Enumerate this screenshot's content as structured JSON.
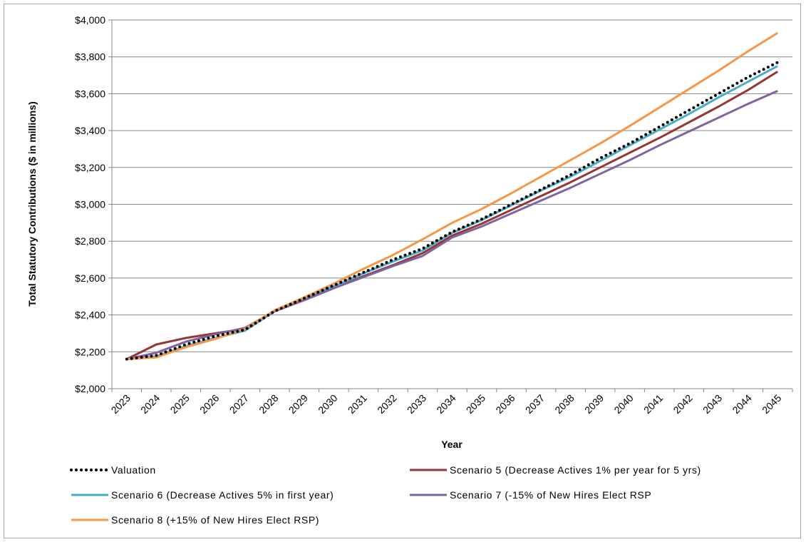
{
  "chart_data": {
    "type": "line",
    "title": "",
    "xlabel": "Year",
    "ylabel": "Total Statutory Contributions ($ in millions)",
    "x": [
      "2023",
      "2024",
      "2025",
      "2026",
      "2027",
      "2028",
      "2029",
      "2030",
      "2031",
      "2032",
      "2033",
      "2034",
      "2035",
      "2036",
      "2037",
      "2038",
      "2039",
      "2040",
      "2041",
      "2042",
      "2043",
      "2044",
      "2045"
    ],
    "ylim": [
      2000,
      4000
    ],
    "yticks": [
      {
        "value": 2000,
        "label": "$2,000"
      },
      {
        "value": 2200,
        "label": "$2,200"
      },
      {
        "value": 2400,
        "label": "$2,400"
      },
      {
        "value": 2600,
        "label": "$2,600"
      },
      {
        "value": 2800,
        "label": "$2,800"
      },
      {
        "value": 3000,
        "label": "$3,000"
      },
      {
        "value": 3200,
        "label": "$3,200"
      },
      {
        "value": 3400,
        "label": "$3,400"
      },
      {
        "value": 3600,
        "label": "$3,600"
      },
      {
        "value": 3800,
        "label": "$3,800"
      },
      {
        "value": 4000,
        "label": "$4,000"
      }
    ],
    "grid": "horizontal",
    "legend_position": "bottom",
    "series": [
      {
        "name": "Valuation",
        "color": "#000000",
        "style": "dotted",
        "values": [
          2160,
          2180,
          2240,
          2285,
          2320,
          2420,
          2490,
          2560,
          2630,
          2700,
          2760,
          2850,
          2920,
          3000,
          3080,
          3160,
          3250,
          3330,
          3420,
          3510,
          3600,
          3690,
          3770
        ]
      },
      {
        "name": "Scenario 5 (Decrease Actives 1% per year for 5 yrs)",
        "color": "#953735",
        "style": "solid",
        "values": [
          2160,
          2240,
          2275,
          2300,
          2325,
          2420,
          2480,
          2545,
          2610,
          2670,
          2735,
          2830,
          2895,
          2970,
          3045,
          3120,
          3200,
          3280,
          3360,
          3445,
          3530,
          3620,
          3720
        ]
      },
      {
        "name": "Scenario 6 (Decrease Actives 5% in first year)",
        "color": "#4bacc6",
        "style": "solid",
        "values": [
          2160,
          2175,
          2230,
          2275,
          2315,
          2420,
          2490,
          2555,
          2625,
          2690,
          2750,
          2845,
          2915,
          2995,
          3075,
          3150,
          3235,
          3320,
          3405,
          3490,
          3580,
          3665,
          3750
        ]
      },
      {
        "name": "Scenario 7 (-15% of New Hires Elect RSP",
        "color": "#8064a2",
        "style": "solid",
        "values": [
          2160,
          2195,
          2255,
          2295,
          2330,
          2420,
          2480,
          2545,
          2605,
          2665,
          2720,
          2820,
          2880,
          2950,
          3020,
          3090,
          3165,
          3240,
          3320,
          3395,
          3470,
          3545,
          3615
        ]
      },
      {
        "name": "Scenario 8 (+15% of New Hires Elect RSP)",
        "color": "#f79646",
        "style": "solid",
        "values": [
          2160,
          2170,
          2225,
          2270,
          2325,
          2425,
          2495,
          2570,
          2650,
          2725,
          2810,
          2900,
          2975,
          3060,
          3150,
          3240,
          3330,
          3425,
          3525,
          3625,
          3725,
          3830,
          3930
        ]
      }
    ]
  }
}
